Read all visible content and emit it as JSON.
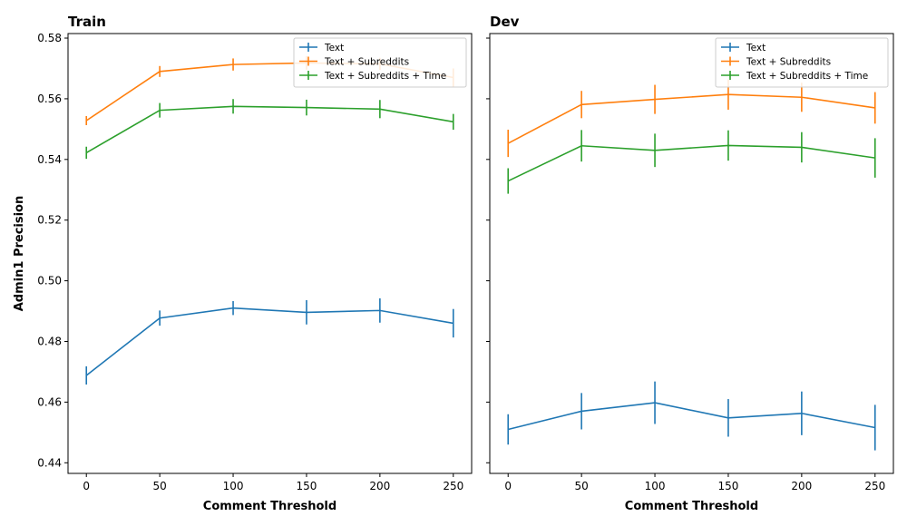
{
  "chart_data": [
    {
      "type": "line",
      "title": "Train",
      "xlabel": "Comment Threshold",
      "ylabel": "Admin1 Precision",
      "x": [
        0,
        50,
        100,
        150,
        200,
        250
      ],
      "xticks": [
        "0",
        "50",
        "100",
        "150",
        "200",
        "250"
      ],
      "yticks": [
        "0.44",
        "0.46",
        "0.48",
        "0.50",
        "0.52",
        "0.54",
        "0.56",
        "0.58"
      ],
      "xlim": [
        -12.5,
        262.5
      ],
      "ylim": [
        0.4365,
        0.5815
      ],
      "legend_position": "top-right",
      "series": [
        {
          "name": "Text",
          "color": "#1f77b4",
          "values": [
            0.4688,
            0.4877,
            0.491,
            0.4896,
            0.4902,
            0.486
          ],
          "errors": [
            0.003,
            0.0025,
            0.0023,
            0.004,
            0.004,
            0.0047
          ]
        },
        {
          "name": "Text + Subreddits",
          "color": "#ff7f0e",
          "values": [
            0.5528,
            0.569,
            0.5713,
            0.5718,
            0.5715,
            0.567
          ],
          "errors": [
            0.0015,
            0.0018,
            0.002,
            0.0022,
            0.002,
            0.003
          ]
        },
        {
          "name": "Text + Subreddits + Time",
          "color": "#2ca02c",
          "values": [
            0.5422,
            0.5562,
            0.5575,
            0.5571,
            0.5566,
            0.5524
          ],
          "errors": [
            0.002,
            0.0024,
            0.0024,
            0.0026,
            0.003,
            0.0026
          ]
        }
      ]
    },
    {
      "type": "line",
      "title": "Dev",
      "xlabel": "Comment Threshold",
      "ylabel": "",
      "x": [
        0,
        50,
        100,
        150,
        200,
        250
      ],
      "xticks": [
        "0",
        "50",
        "100",
        "150",
        "200",
        "250"
      ],
      "yticks": [],
      "xlim": [
        -12.5,
        262.5
      ],
      "ylim": [
        0.4365,
        0.5815
      ],
      "legend_position": "top-right",
      "series": [
        {
          "name": "Text",
          "color": "#1f77b4",
          "values": [
            0.451,
            0.457,
            0.4598,
            0.4548,
            0.4563,
            0.4516
          ],
          "errors": [
            0.005,
            0.006,
            0.007,
            0.0062,
            0.0072,
            0.0075
          ]
        },
        {
          "name": "Text + Subreddits",
          "color": "#ff7f0e",
          "values": [
            0.5453,
            0.5581,
            0.5598,
            0.5614,
            0.5605,
            0.557
          ],
          "errors": [
            0.0045,
            0.0045,
            0.0048,
            0.005,
            0.0048,
            0.0052
          ]
        },
        {
          "name": "Text + Subreddits + Time",
          "color": "#2ca02c",
          "values": [
            0.5329,
            0.5445,
            0.543,
            0.5446,
            0.544,
            0.5405
          ],
          "errors": [
            0.0042,
            0.0052,
            0.0055,
            0.005,
            0.005,
            0.0065
          ]
        }
      ]
    }
  ]
}
